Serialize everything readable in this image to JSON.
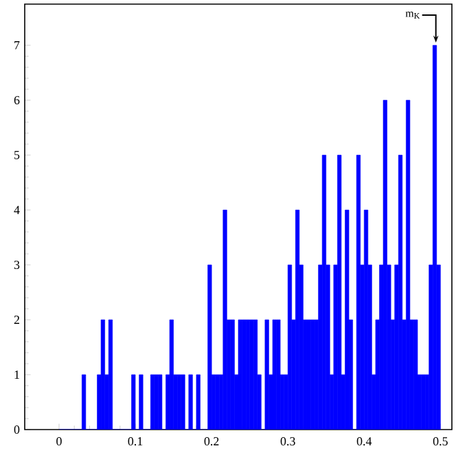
{
  "chart_data": {
    "type": "histogram",
    "bins": [
      0,
      0.005,
      0.01,
      0.015,
      0.02,
      0.025,
      0.03,
      0.035,
      0.04,
      0.045,
      0.05,
      0.055,
      0.06,
      0.065,
      0.07,
      0.075,
      0.08,
      0.085,
      0.09,
      0.095,
      0.1,
      0.105,
      0.11,
      0.115,
      0.12,
      0.125,
      0.13,
      0.135,
      0.14,
      0.145,
      0.15,
      0.155,
      0.16,
      0.165,
      0.17,
      0.175,
      0.18,
      0.185,
      0.19,
      0.195,
      0.2,
      0.205,
      0.21,
      0.215,
      0.22,
      0.225,
      0.23,
      0.235,
      0.24,
      0.245,
      0.25,
      0.255,
      0.26,
      0.265,
      0.27,
      0.275,
      0.28,
      0.285,
      0.29,
      0.295,
      0.3,
      0.305,
      0.31,
      0.315,
      0.32,
      0.325,
      0.33,
      0.335,
      0.34,
      0.345,
      0.35,
      0.355,
      0.36,
      0.365,
      0.37,
      0.375,
      0.38,
      0.385,
      0.39,
      0.395,
      0.4,
      0.405,
      0.41,
      0.415,
      0.42,
      0.425,
      0.43,
      0.435,
      0.44,
      0.445,
      0.45,
      0.455,
      0.46,
      0.465,
      0.47,
      0.475,
      0.48,
      0.485,
      0.49,
      0.495,
      0.5
    ],
    "values": [
      0,
      0,
      0,
      0,
      0,
      0,
      1,
      0,
      0,
      0,
      1,
      2,
      1,
      2,
      0,
      0,
      0,
      0,
      0,
      1,
      0,
      1,
      0,
      0,
      1,
      1,
      1,
      0,
      1,
      2,
      1,
      1,
      1,
      0,
      1,
      0,
      1,
      0,
      0,
      3,
      1,
      1,
      1,
      4,
      2,
      2,
      1,
      2,
      2,
      2,
      2,
      2,
      1,
      0,
      2,
      1,
      2,
      2,
      1,
      1,
      3,
      2,
      4,
      3,
      2,
      2,
      2,
      2,
      3,
      5,
      3,
      1,
      3,
      5,
      1,
      4,
      2,
      0,
      5,
      3,
      4,
      3,
      1,
      2,
      3,
      6,
      3,
      2,
      3,
      5,
      2,
      6,
      2,
      2,
      1,
      1,
      1,
      3,
      7,
      3
    ],
    "color": "#0000ff",
    "xlim": [
      -0.045,
      0.515
    ],
    "ylim": [
      0,
      7.75
    ],
    "xticks": [
      0,
      0.1,
      0.2,
      0.3,
      0.4,
      0.5
    ],
    "yticks": [
      0,
      1,
      2,
      3,
      4,
      5,
      6,
      7
    ],
    "annotations": [
      {
        "text": "m$_{K}$",
        "x": 0.494,
        "y": 7
      }
    ]
  }
}
